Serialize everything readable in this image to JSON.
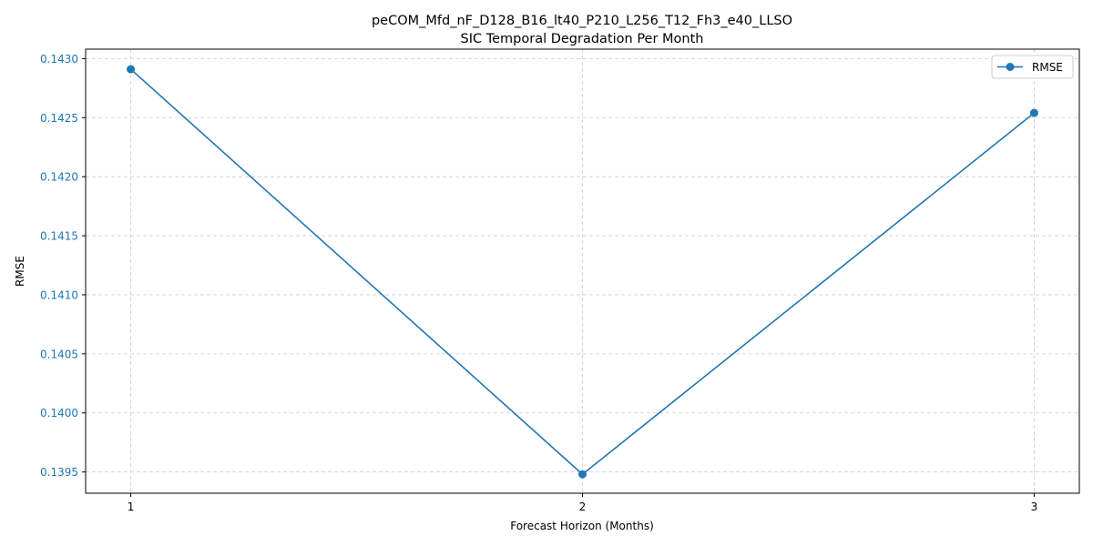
{
  "chart_data": {
    "type": "line",
    "title": "peCOM_Mfd_nF_D128_B16_lt40_P210_L256_T12_Fh3_e40_LLSO",
    "subtitle": "SIC Temporal Degradation Per Month",
    "xlabel": "Forecast Horizon (Months)",
    "ylabel": "RMSE",
    "x": [
      1,
      2,
      3
    ],
    "x_tick_labels": [
      "1",
      "2",
      "3"
    ],
    "series": [
      {
        "name": "RMSE",
        "values": [
          0.14291,
          0.13948,
          0.14254
        ]
      }
    ],
    "xlim": [
      0.9,
      3.1
    ],
    "ylim": [
      0.13932,
      0.14308
    ],
    "y_ticks": [
      0.1395,
      0.14,
      0.1405,
      0.141,
      0.1415,
      0.142,
      0.1425,
      0.143
    ],
    "y_tick_labels": [
      "0.1395",
      "0.1400",
      "0.1405",
      "0.1410",
      "0.1415",
      "0.1420",
      "0.1425",
      "0.1430"
    ],
    "grid": true,
    "legend": "top-right",
    "colors": {
      "series": "#1f77b4",
      "y_tick_labels": "#1f77b4",
      "grid": "#cccccc",
      "axes": "#000000"
    }
  }
}
